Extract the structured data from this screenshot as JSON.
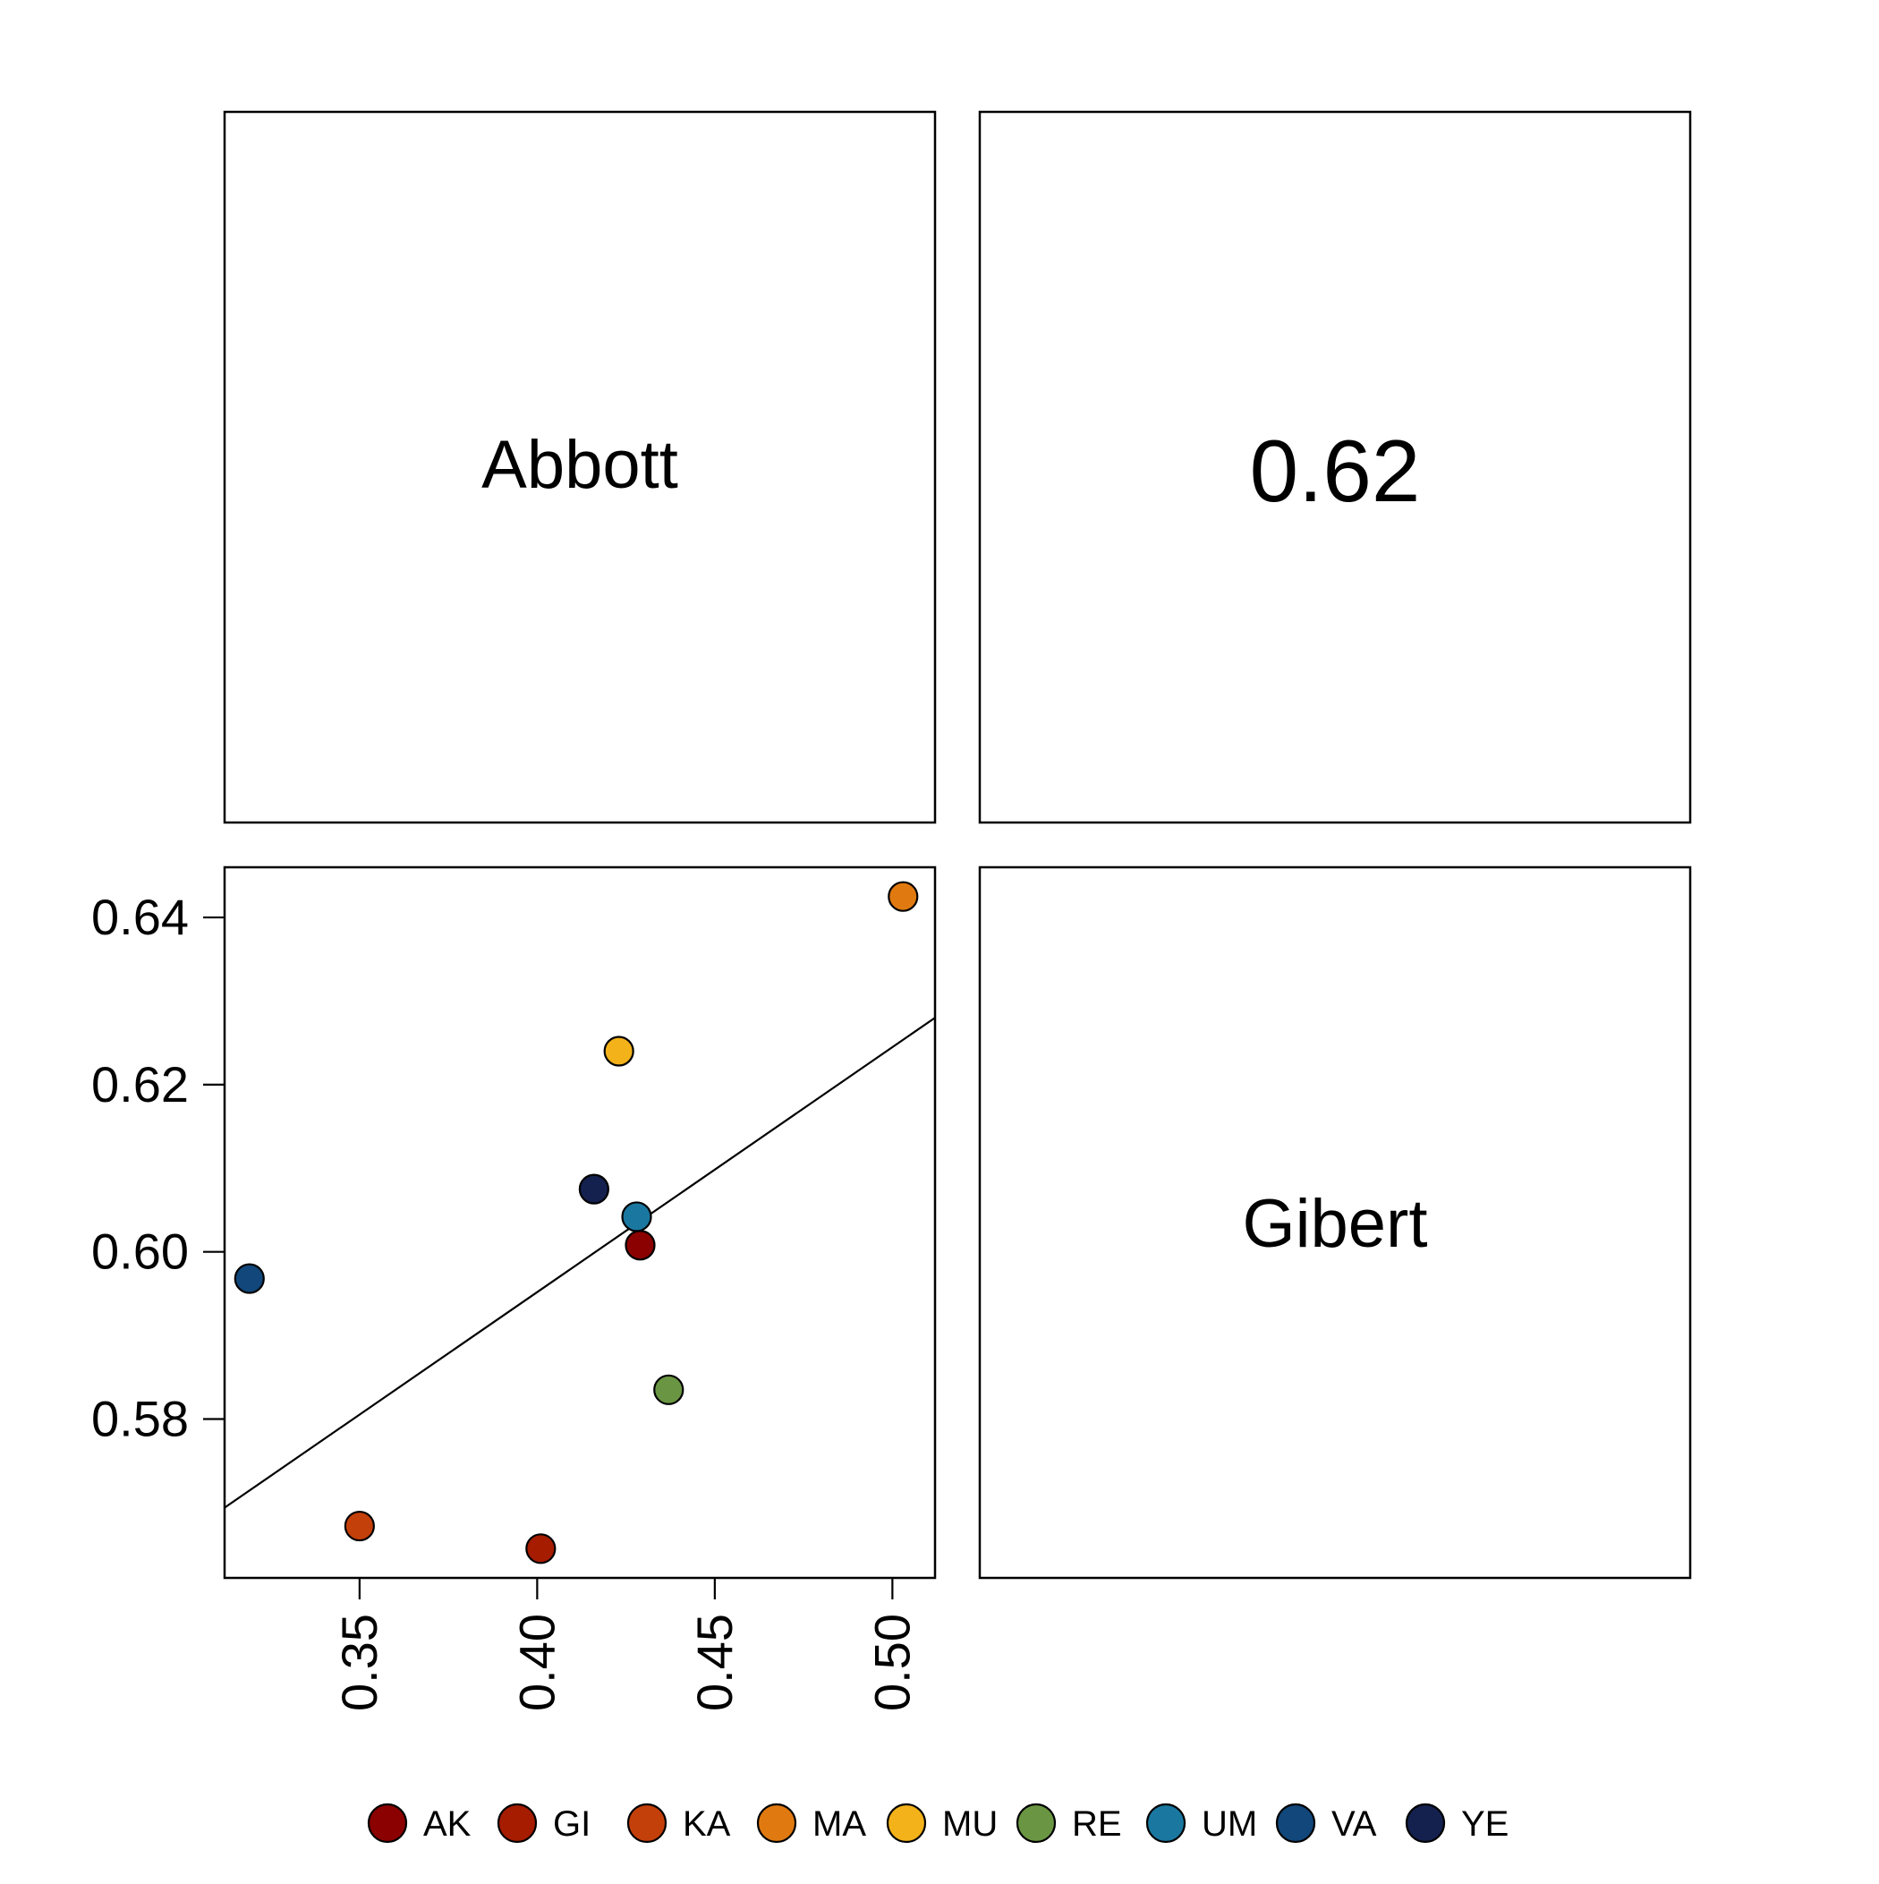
{
  "chart_data": {
    "type": "scatter-matrix",
    "variables": [
      "Abbott",
      "Gibert"
    ],
    "correlation": {
      "label": "0.62",
      "value": 0.62
    },
    "x_variable": "Abbott",
    "y_variable": "Gibert",
    "xlim": [
      0.312,
      0.512
    ],
    "ylim": [
      0.561,
      0.646
    ],
    "x_ticks": [
      {
        "value": 0.35,
        "label": "0.35"
      },
      {
        "value": 0.4,
        "label": "0.40"
      },
      {
        "value": 0.45,
        "label": "0.45"
      },
      {
        "value": 0.5,
        "label": "0.50"
      }
    ],
    "y_ticks": [
      {
        "value": 0.58,
        "label": "0.58"
      },
      {
        "value": 0.6,
        "label": "0.60"
      },
      {
        "value": 0.62,
        "label": "0.62"
      },
      {
        "value": 0.64,
        "label": "0.64"
      }
    ],
    "points": [
      {
        "group": "AK",
        "x": 0.429,
        "y": 0.6008,
        "color": "#8B0000"
      },
      {
        "group": "GI",
        "x": 0.401,
        "y": 0.5645,
        "color": "#A51C00"
      },
      {
        "group": "KA",
        "x": 0.35,
        "y": 0.5672,
        "color": "#C4400A"
      },
      {
        "group": "MA",
        "x": 0.503,
        "y": 0.6425,
        "color": "#E07A10"
      },
      {
        "group": "MU",
        "x": 0.423,
        "y": 0.624,
        "color": "#F3B21A"
      },
      {
        "group": "RE",
        "x": 0.437,
        "y": 0.5835,
        "color": "#6A9643"
      },
      {
        "group": "UM",
        "x": 0.428,
        "y": 0.6042,
        "color": "#1A78A0"
      },
      {
        "group": "VA",
        "x": 0.319,
        "y": 0.5968,
        "color": "#11477A"
      },
      {
        "group": "YE",
        "x": 0.416,
        "y": 0.6075,
        "color": "#14214F"
      }
    ],
    "fit_line": {
      "x": [
        0.312,
        0.512
      ],
      "y": [
        0.5694,
        0.628
      ]
    },
    "legend": {
      "position": "bottom",
      "entries": [
        {
          "label": "AK",
          "color": "#8B0000"
        },
        {
          "label": "GI",
          "color": "#A51C00"
        },
        {
          "label": "KA",
          "color": "#C4400A"
        },
        {
          "label": "MA",
          "color": "#E07A10"
        },
        {
          "label": "MU",
          "color": "#F3B21A"
        },
        {
          "label": "RE",
          "color": "#6A9643"
        },
        {
          "label": "UM",
          "color": "#1A78A0"
        },
        {
          "label": "VA",
          "color": "#11477A"
        },
        {
          "label": "YE",
          "color": "#14214F"
        }
      ]
    }
  }
}
